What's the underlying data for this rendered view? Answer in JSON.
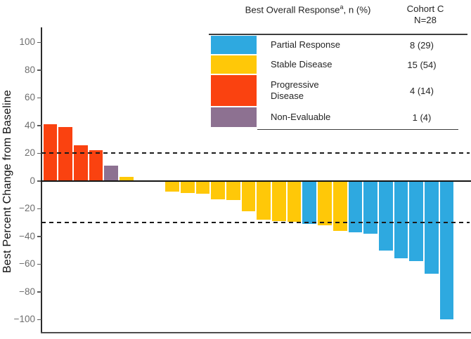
{
  "colors": {
    "partial_response": "#2EA9E0",
    "stable_disease": "#FFC808",
    "progressive_disease": "#FA4210",
    "non_evaluable": "#8D7191",
    "axis": "#2B2B2B",
    "tick_label": "#6E6E6E",
    "reference_line": "#1A1A1A",
    "table_border": "#3D3D3D"
  },
  "chart_data": {
    "type": "bar",
    "subtype": "waterfall",
    "title": "",
    "xlabel": "",
    "ylabel": "Best Percent Change from Baseline",
    "yticks": [
      100,
      80,
      60,
      40,
      20,
      0,
      -20,
      -40,
      -60,
      -80,
      -100
    ],
    "ylim": [
      -109,
      111
    ],
    "grid": false,
    "reference_lines": [
      20,
      -30
    ],
    "legend_position": "top-right",
    "bars": [
      {
        "value": 41,
        "response": "progressive_disease"
      },
      {
        "value": 39,
        "response": "progressive_disease"
      },
      {
        "value": 25.5,
        "response": "progressive_disease"
      },
      {
        "value": 22,
        "response": "progressive_disease"
      },
      {
        "value": 11,
        "response": "non_evaluable"
      },
      {
        "value": 3,
        "response": "stable_disease"
      },
      {
        "value": 0,
        "response": "stable_disease"
      },
      {
        "value": 0,
        "response": "stable_disease"
      },
      {
        "value": -7.5,
        "response": "stable_disease"
      },
      {
        "value": -8.5,
        "response": "stable_disease"
      },
      {
        "value": -9,
        "response": "stable_disease"
      },
      {
        "value": -13.5,
        "response": "stable_disease"
      },
      {
        "value": -14,
        "response": "stable_disease"
      },
      {
        "value": -22,
        "response": "stable_disease"
      },
      {
        "value": -28,
        "response": "stable_disease"
      },
      {
        "value": -29,
        "response": "stable_disease"
      },
      {
        "value": -29.5,
        "response": "stable_disease"
      },
      {
        "value": -31,
        "response": "partial_response"
      },
      {
        "value": -32,
        "response": "stable_disease"
      },
      {
        "value": -36,
        "response": "stable_disease"
      },
      {
        "value": -37,
        "response": "partial_response"
      },
      {
        "value": -38,
        "response": "partial_response"
      },
      {
        "value": -50,
        "response": "partial_response"
      },
      {
        "value": -56,
        "response": "partial_response"
      },
      {
        "value": -58,
        "response": "partial_response"
      },
      {
        "value": -67,
        "response": "partial_response"
      },
      {
        "value": -100,
        "response": "partial_response"
      }
    ]
  },
  "legend": {
    "title_main": "Best Overall Response",
    "title_sup": "a",
    "title_rest": ", n (%)",
    "cohort_line1": "Cohort C",
    "cohort_line2": "N=28",
    "rows": [
      {
        "label": "Partial Response",
        "count": "8 (29)",
        "color_key": "partial_response"
      },
      {
        "label": "Stable Disease",
        "count": "15 (54)",
        "color_key": "stable_disease"
      },
      {
        "label": "Progressive Disease",
        "count": "4 (14)",
        "color_key": "progressive_disease"
      },
      {
        "label": "Non-Evaluable",
        "count": "1 (4)",
        "color_key": "non_evaluable"
      }
    ]
  }
}
